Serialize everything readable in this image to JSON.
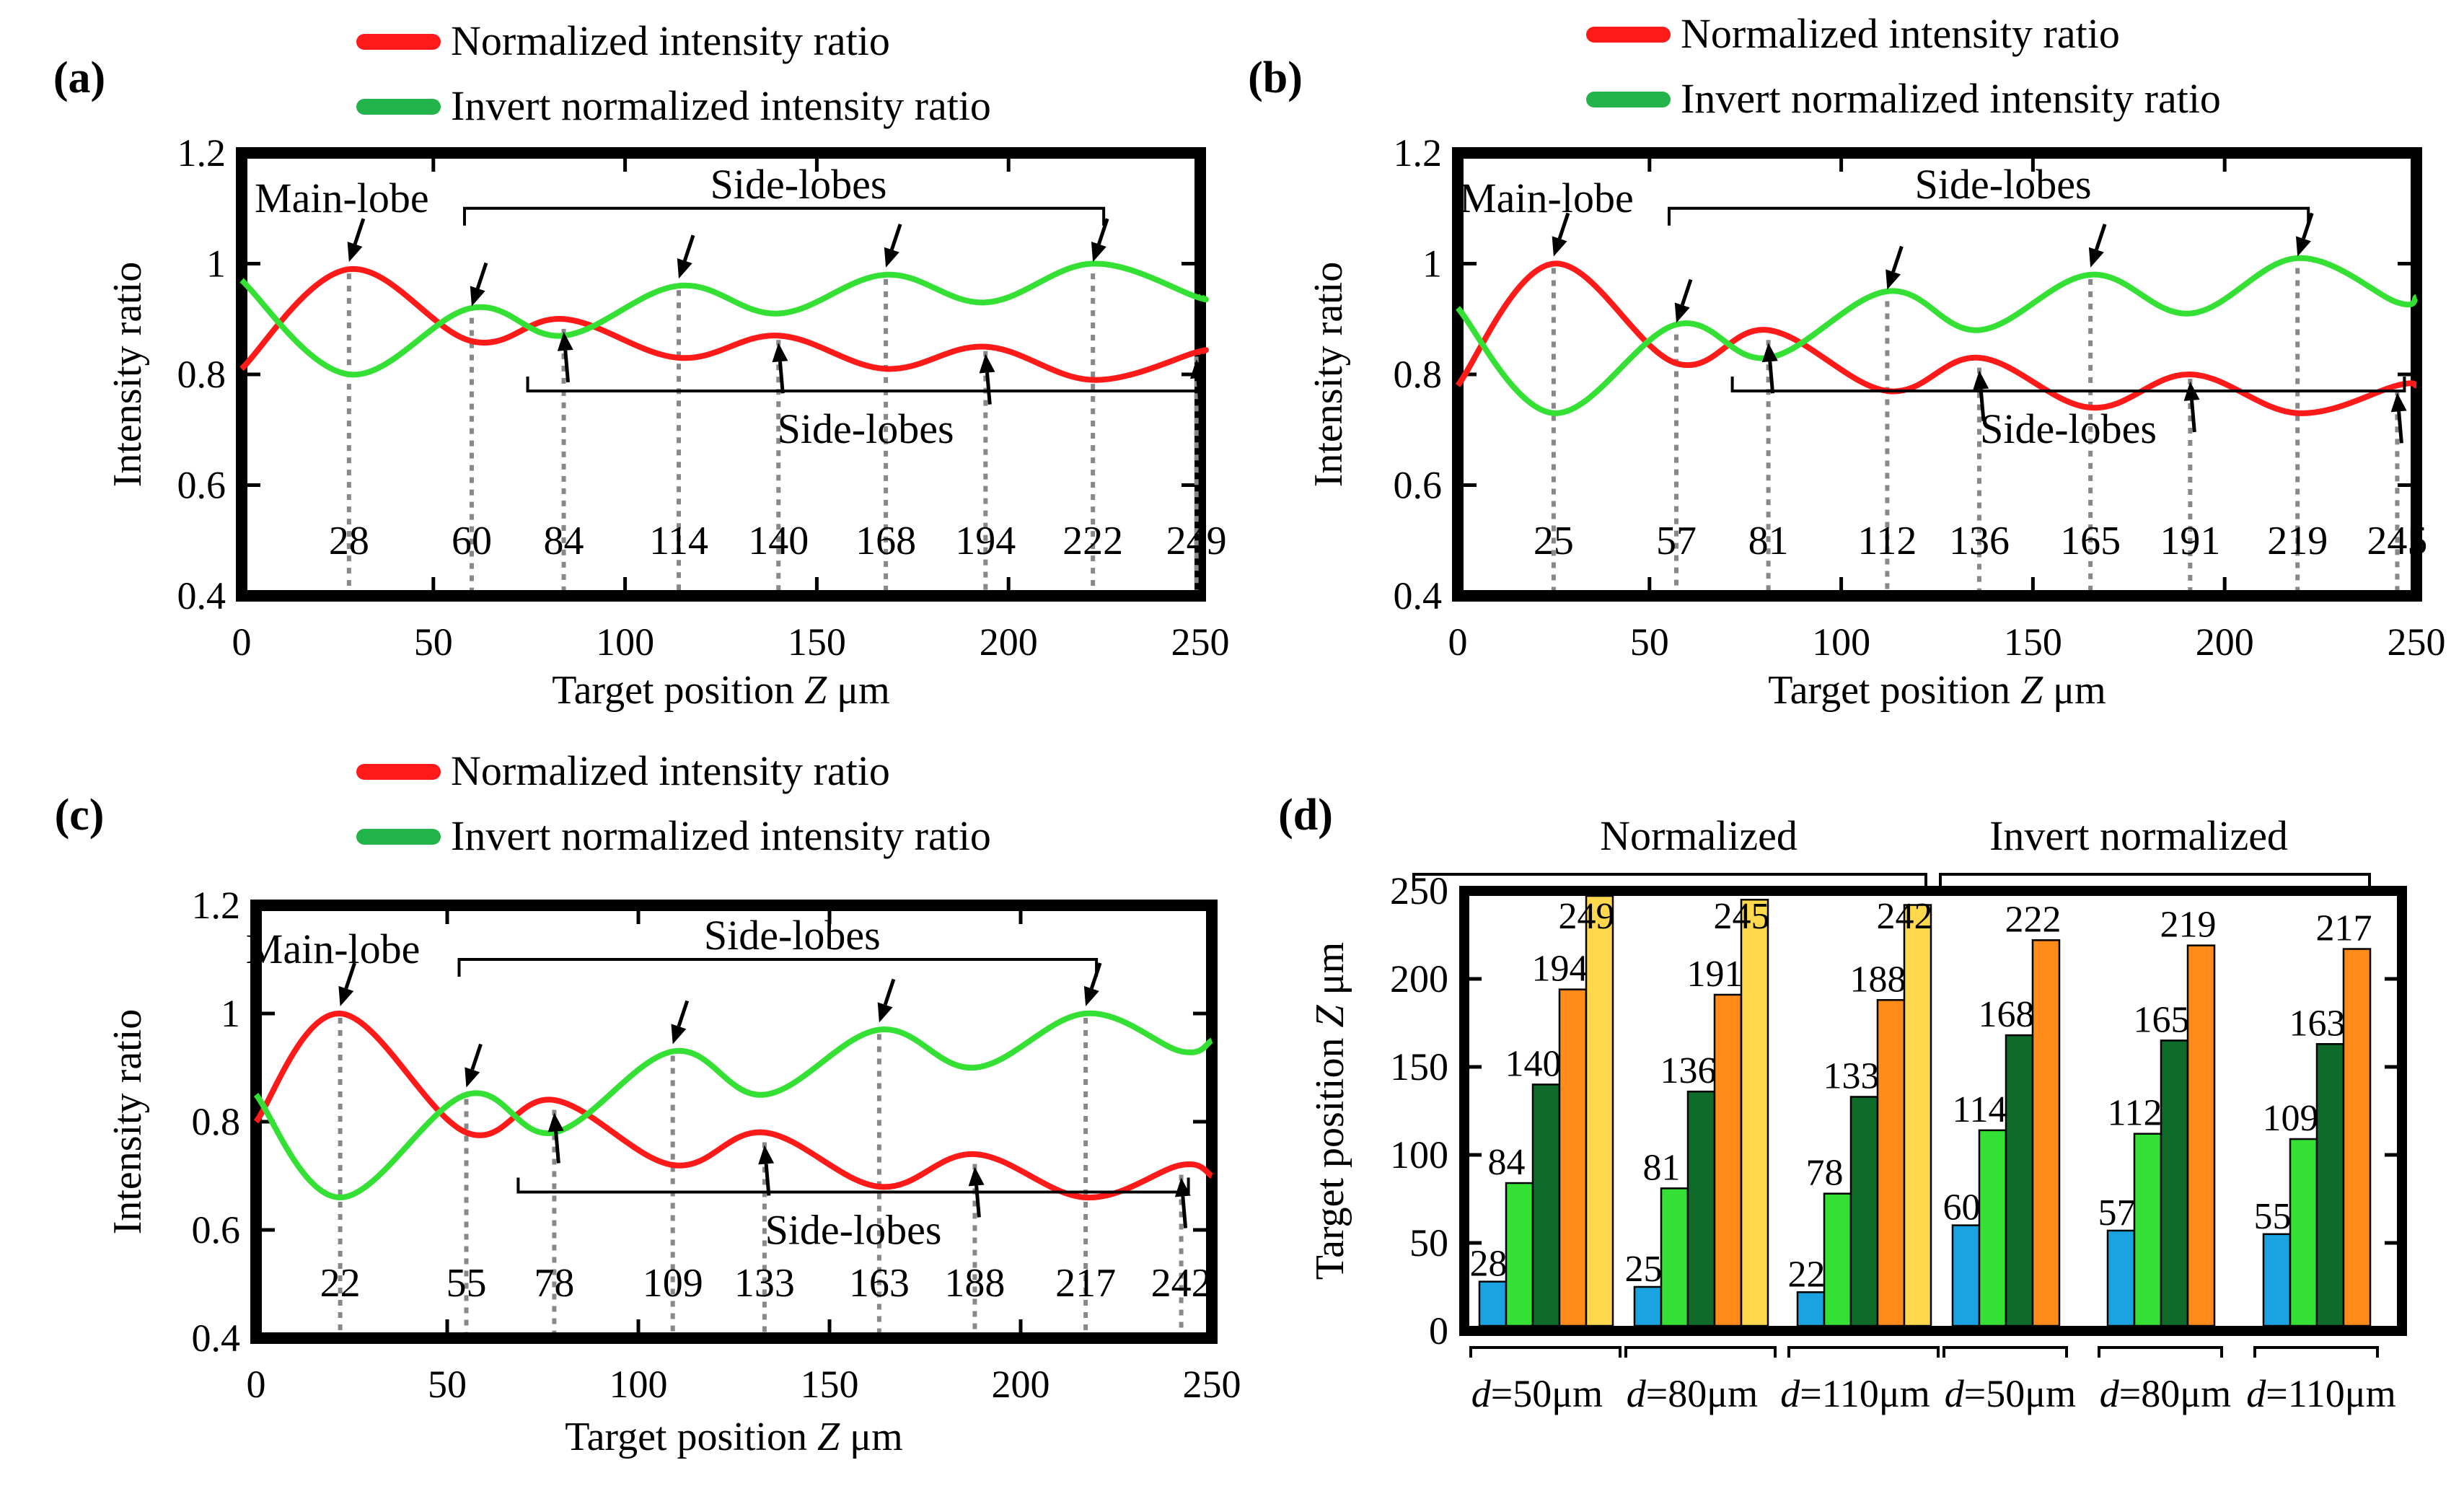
{
  "figure": {
    "panel_labels": [
      "(a)",
      "(b)",
      "(c)",
      "(d)"
    ],
    "colors": {
      "normalized": "#ff1a1a",
      "invert": "#33e033",
      "legend_invert": "#22b44a",
      "drop_line": "#888888",
      "arrow": "#000000",
      "frame": "#000000"
    }
  },
  "chart_data": [
    {
      "panel": "(a)",
      "type": "line",
      "xlabel_main": "Target position ",
      "xlabel_var": "Z",
      "xlabel_unit": " μm",
      "ylabel": "Intensity ratio",
      "xlim": [
        0,
        250
      ],
      "ylim": [
        0.4,
        1.2
      ],
      "xticks": [
        "0",
        "50",
        "100",
        "150",
        "200",
        "250"
      ],
      "yticks": [
        "0.4",
        "0.6",
        "0.8",
        "1",
        "1.2"
      ],
      "legend": [
        "Normalized intensity ratio",
        "Invert normalized intensity ratio"
      ],
      "annotations": {
        "main_lobe": "Main-lobe",
        "side_lobes_top": "Side-lobes",
        "side_lobes_bottom": "Side-lobes"
      },
      "peaks": [
        {
          "x": 28,
          "y": 0.99,
          "label": "28",
          "series": "normalized"
        },
        {
          "x": 60,
          "y": 0.91,
          "label": "60",
          "series": "invert"
        },
        {
          "x": 84,
          "y": 0.89,
          "label": "84",
          "series": "normalized"
        },
        {
          "x": 114,
          "y": 0.96,
          "label": "114",
          "series": "invert"
        },
        {
          "x": 140,
          "y": 0.87,
          "label": "140",
          "series": "normalized"
        },
        {
          "x": 168,
          "y": 0.98,
          "label": "168",
          "series": "invert"
        },
        {
          "x": 194,
          "y": 0.85,
          "label": "194",
          "series": "normalized"
        },
        {
          "x": 222,
          "y": 0.99,
          "label": "222",
          "series": "invert"
        },
        {
          "x": 249,
          "y": 0.84,
          "label": "249",
          "series": "normalized"
        }
      ],
      "series": [
        {
          "name": "Normalized intensity ratio",
          "x": [
            0,
            28,
            60,
            84,
            114,
            140,
            168,
            194,
            222,
            249,
            250
          ],
          "y": [
            0.81,
            0.99,
            0.86,
            0.9,
            0.83,
            0.87,
            0.81,
            0.85,
            0.79,
            0.84,
            0.84
          ]
        },
        {
          "name": "Invert normalized intensity ratio",
          "x": [
            0,
            28,
            60,
            84,
            114,
            140,
            168,
            194,
            222,
            249,
            250
          ],
          "y": [
            0.97,
            0.8,
            0.92,
            0.87,
            0.96,
            0.91,
            0.98,
            0.93,
            1.0,
            0.94,
            0.94
          ]
        }
      ]
    },
    {
      "panel": "(b)",
      "type": "line",
      "xlabel_main": "Target position ",
      "xlabel_var": "Z",
      "xlabel_unit": " μm",
      "ylabel": "Intensity ratio",
      "xlim": [
        0,
        250
      ],
      "ylim": [
        0.4,
        1.2
      ],
      "xticks": [
        "0",
        "50",
        "100",
        "150",
        "200",
        "250"
      ],
      "yticks": [
        "0.4",
        "0.6",
        "0.8",
        "1",
        "1.2"
      ],
      "legend": [
        "Normalized intensity ratio",
        "Invert normalized intensity ratio"
      ],
      "annotations": {
        "main_lobe": "Main-lobe",
        "side_lobes_top": "Side-lobes",
        "side_lobes_bottom": "Side-lobes"
      },
      "peaks": [
        {
          "x": 25,
          "y": 1.0,
          "label": "25",
          "series": "normalized"
        },
        {
          "x": 57,
          "y": 0.88,
          "label": "57",
          "series": "invert"
        },
        {
          "x": 81,
          "y": 0.87,
          "label": "81",
          "series": "normalized"
        },
        {
          "x": 112,
          "y": 0.94,
          "label": "112",
          "series": "invert"
        },
        {
          "x": 136,
          "y": 0.82,
          "label": "136",
          "series": "normalized"
        },
        {
          "x": 165,
          "y": 0.98,
          "label": "165",
          "series": "invert"
        },
        {
          "x": 191,
          "y": 0.8,
          "label": "191",
          "series": "normalized"
        },
        {
          "x": 219,
          "y": 1.0,
          "label": "219",
          "series": "invert"
        },
        {
          "x": 245,
          "y": 0.78,
          "label": "245",
          "series": "normalized"
        }
      ],
      "series": [
        {
          "name": "Normalized intensity ratio",
          "x": [
            0,
            25,
            57,
            81,
            112,
            136,
            165,
            191,
            219,
            245,
            250
          ],
          "y": [
            0.78,
            1.0,
            0.82,
            0.88,
            0.77,
            0.83,
            0.74,
            0.8,
            0.73,
            0.78,
            0.78
          ]
        },
        {
          "name": "Invert normalized intensity ratio",
          "x": [
            0,
            25,
            57,
            81,
            112,
            136,
            165,
            191,
            219,
            245,
            250
          ],
          "y": [
            0.92,
            0.73,
            0.89,
            0.83,
            0.95,
            0.88,
            0.98,
            0.91,
            1.01,
            0.93,
            0.94
          ]
        }
      ]
    },
    {
      "panel": "(c)",
      "type": "line",
      "xlabel_main": "Target position ",
      "xlabel_var": "Z",
      "xlabel_unit": " μm",
      "ylabel": "Intensity ratio",
      "xlim": [
        0,
        250
      ],
      "ylim": [
        0.4,
        1.2
      ],
      "xticks": [
        "0",
        "50",
        "100",
        "150",
        "200",
        "250"
      ],
      "yticks": [
        "0.4",
        "0.6",
        "0.8",
        "1",
        "1.2"
      ],
      "legend": [
        "Normalized intensity ratio",
        "Invert normalized intensity ratio"
      ],
      "annotations": {
        "main_lobe": "Main-lobe",
        "side_lobes_top": "Side-lobes",
        "side_lobes_bottom": "Side-lobes"
      },
      "peaks": [
        {
          "x": 22,
          "y": 1.0,
          "label": "22",
          "series": "normalized"
        },
        {
          "x": 55,
          "y": 0.85,
          "label": "55",
          "series": "invert"
        },
        {
          "x": 78,
          "y": 0.83,
          "label": "78",
          "series": "normalized"
        },
        {
          "x": 109,
          "y": 0.93,
          "label": "109",
          "series": "invert"
        },
        {
          "x": 133,
          "y": 0.77,
          "label": "133",
          "series": "normalized"
        },
        {
          "x": 163,
          "y": 0.97,
          "label": "163",
          "series": "invert"
        },
        {
          "x": 188,
          "y": 0.73,
          "label": "188",
          "series": "normalized"
        },
        {
          "x": 217,
          "y": 1.0,
          "label": "217",
          "series": "invert"
        },
        {
          "x": 242,
          "y": 0.71,
          "label": "242",
          "series": "normalized"
        }
      ],
      "series": [
        {
          "name": "Normalized intensity ratio",
          "x": [
            0,
            22,
            55,
            78,
            109,
            133,
            163,
            188,
            217,
            242,
            250
          ],
          "y": [
            0.8,
            1.0,
            0.78,
            0.84,
            0.72,
            0.78,
            0.68,
            0.74,
            0.66,
            0.72,
            0.7
          ]
        },
        {
          "name": "Invert normalized intensity ratio",
          "x": [
            0,
            22,
            55,
            78,
            109,
            133,
            163,
            188,
            217,
            242,
            250
          ],
          "y": [
            0.85,
            0.66,
            0.85,
            0.78,
            0.93,
            0.85,
            0.97,
            0.9,
            1.0,
            0.93,
            0.95
          ]
        }
      ]
    },
    {
      "panel": "(d)",
      "type": "bar",
      "ylabel_main": "Target position ",
      "ylabel_var": "Z",
      "ylabel_unit": " μm",
      "ylim": [
        0,
        250
      ],
      "yticks": [
        "0",
        "50",
        "100",
        "150",
        "200",
        "250"
      ],
      "group_headers": [
        "Normalized",
        "Invert normalized"
      ],
      "d_symbol": "d",
      "categories": [
        "=50μm",
        "=80μm",
        "=110μm",
        "=50μm",
        "=80μm",
        "=110μm"
      ],
      "bar_colors": [
        "#1aa3e0",
        "#33e033",
        "#0e6b2a",
        "#ff8c1a",
        "#ffd84d"
      ],
      "groups": [
        {
          "values": [
            28,
            84,
            140,
            194,
            249
          ],
          "labels": [
            "28",
            "84",
            "140",
            "194",
            "249"
          ]
        },
        {
          "values": [
            25,
            81,
            136,
            191,
            245
          ],
          "labels": [
            "25",
            "81",
            "136",
            "191",
            "245"
          ]
        },
        {
          "values": [
            22,
            78,
            133,
            188,
            242
          ],
          "labels": [
            "22",
            "78",
            "133",
            "188",
            "242"
          ]
        },
        {
          "values": [
            60,
            114,
            168,
            222
          ],
          "labels": [
            "60",
            "114",
            "168",
            "222"
          ]
        },
        {
          "values": [
            57,
            112,
            165,
            219
          ],
          "labels": [
            "57",
            "112",
            "165",
            "219"
          ]
        },
        {
          "values": [
            55,
            109,
            163,
            217
          ],
          "labels": [
            "55",
            "109",
            "163",
            "217"
          ]
        }
      ]
    }
  ]
}
